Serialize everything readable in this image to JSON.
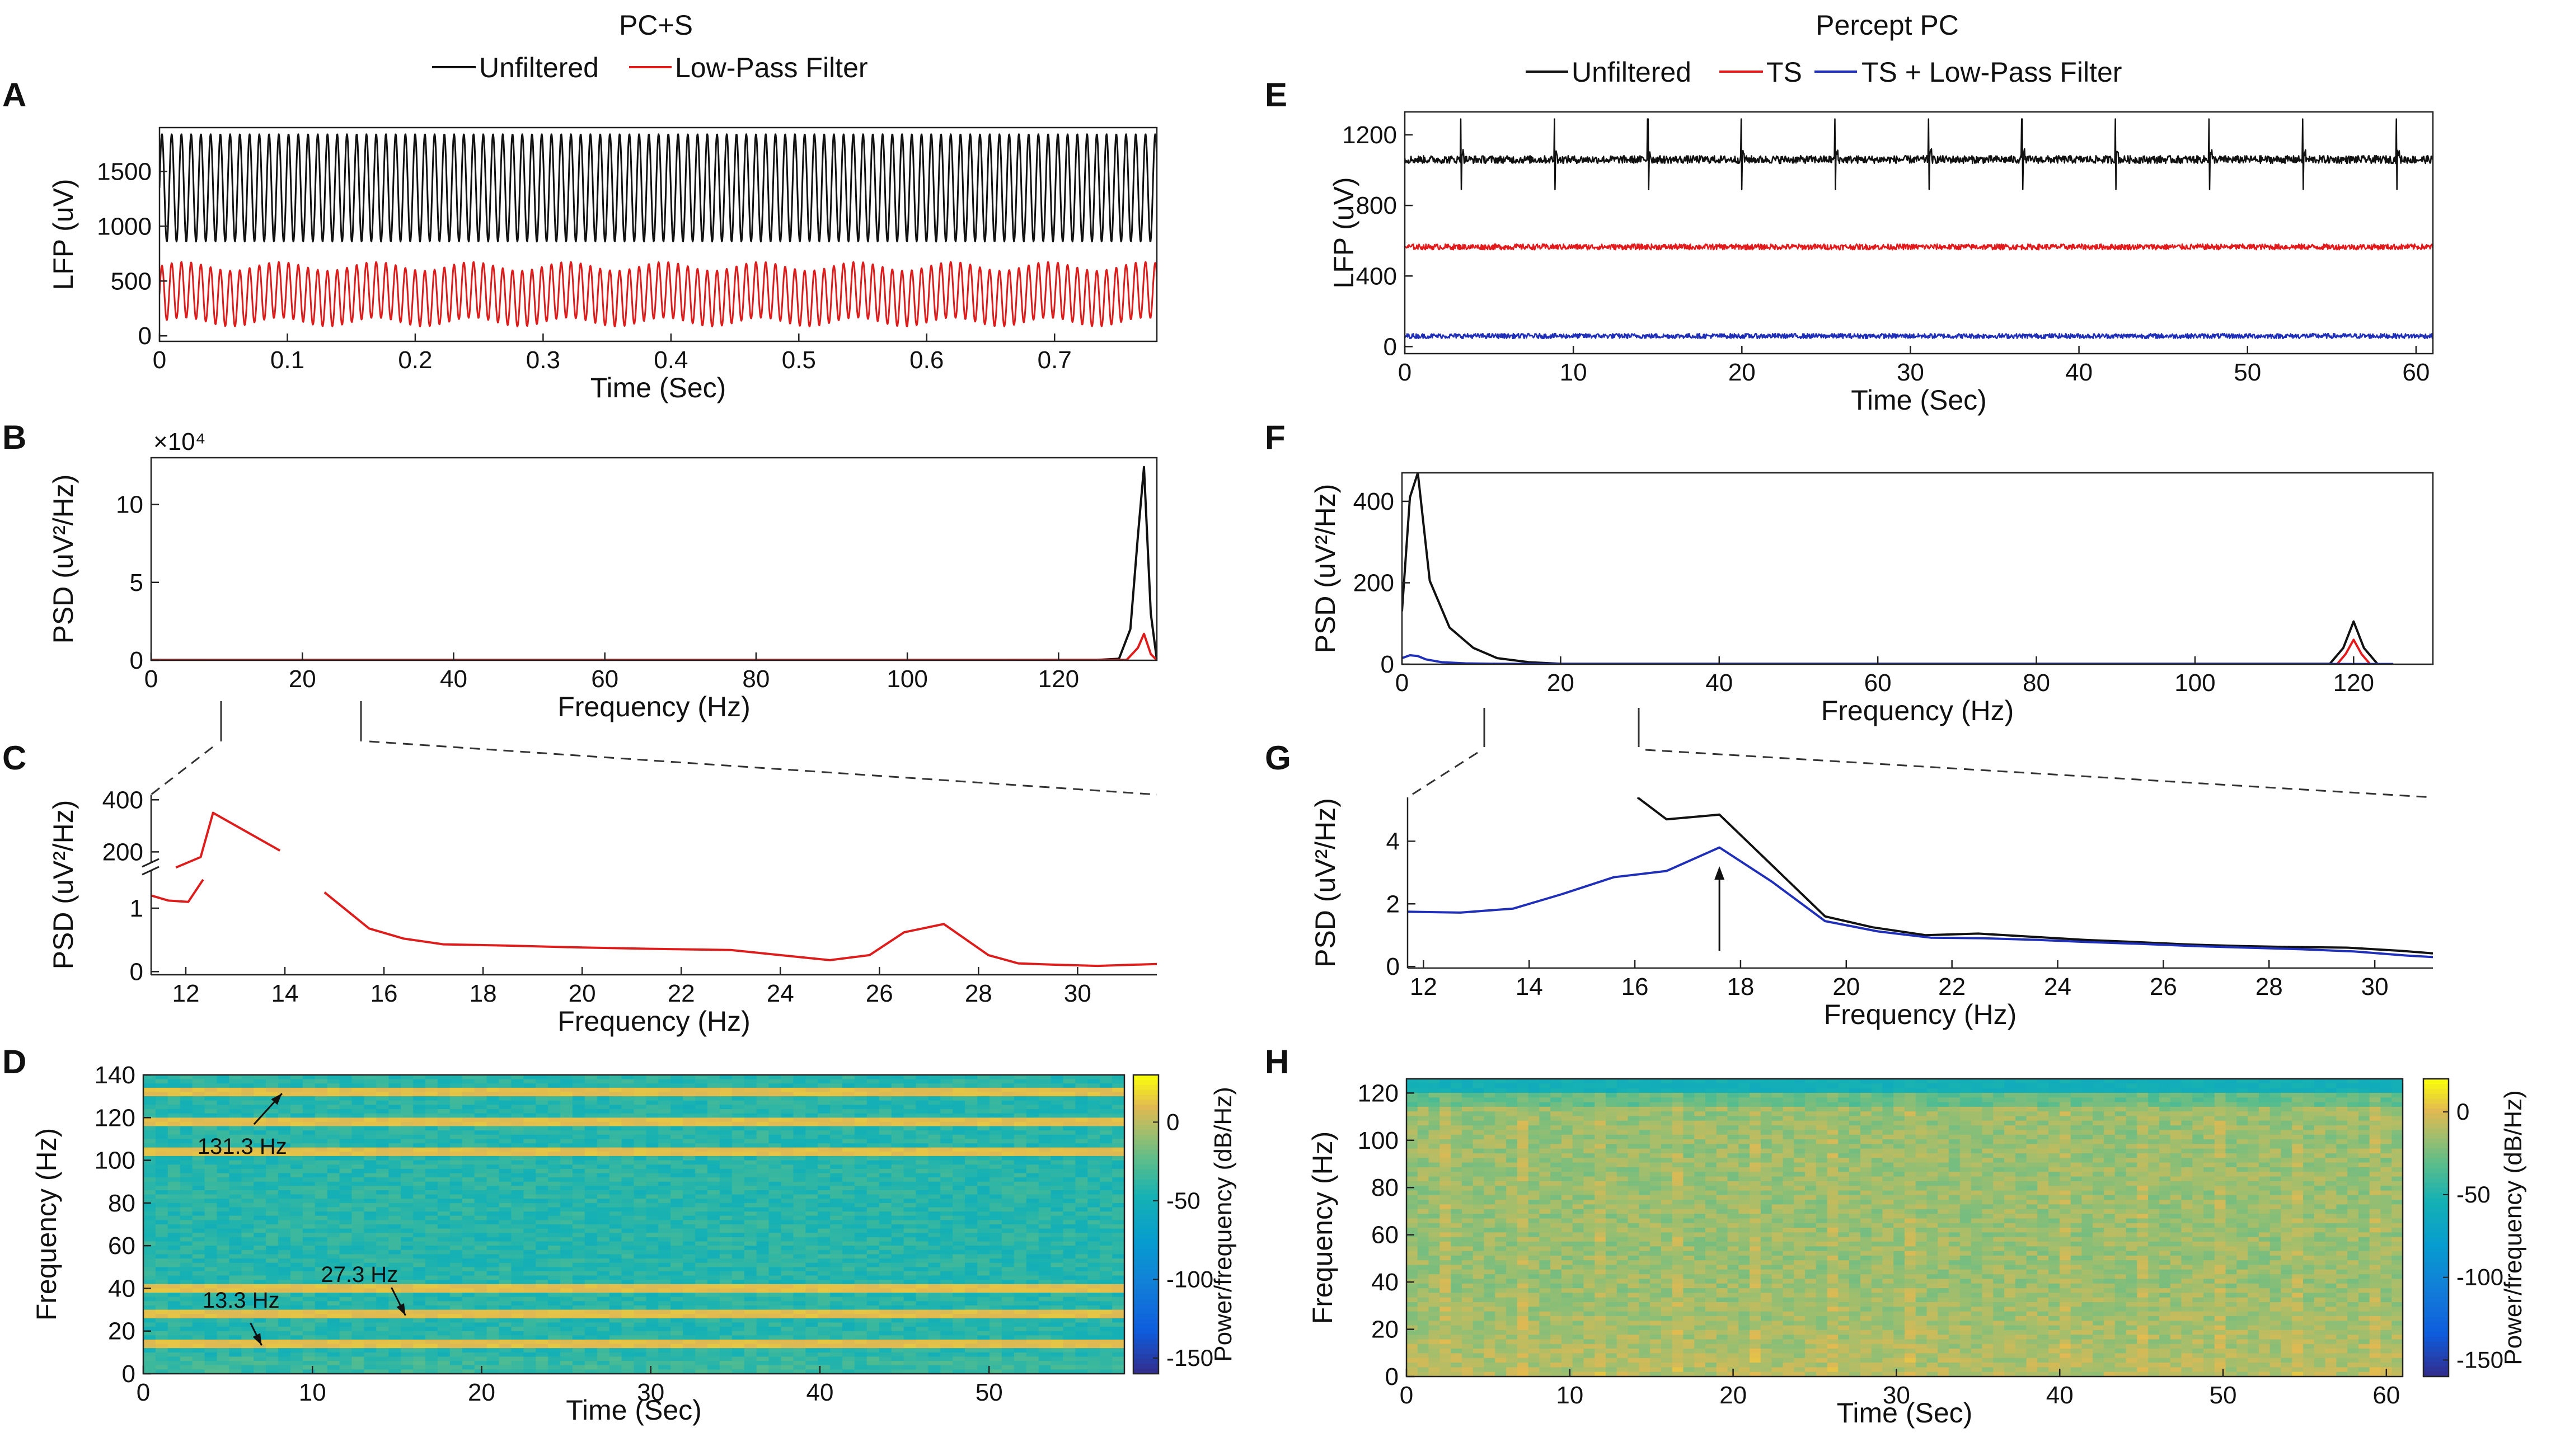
{
  "colors": {
    "unfiltered": "#111111",
    "low_pass": "#dd1c1c",
    "ts": "#e31a1c",
    "ts_lpf": "#1f2fb8",
    "axis": "#222222",
    "zoom_line": "#333333"
  },
  "chart_data": [
    {
      "id": "A",
      "type": "line",
      "panel_label": "A",
      "title": "PC+S",
      "legend": [
        "Unfiltered",
        "Low-Pass Filter"
      ],
      "xlabel": "Time (Sec)",
      "ylabel": "LFP (uV)",
      "xlim": [
        0,
        0.78
      ],
      "ylim": [
        -50,
        1900
      ],
      "xticks": [
        0,
        0.1,
        0.2,
        0.3,
        0.4,
        0.5,
        0.6,
        0.7
      ],
      "xtick_labels": [
        "0",
        "0.1",
        "0.2",
        "0.3",
        "0.4",
        "0.5",
        "0.6",
        "0.7"
      ],
      "yticks": [
        0,
        500,
        1000,
        1500
      ],
      "ytick_labels": [
        "0",
        "500",
        "1000",
        "1500"
      ],
      "series": [
        {
          "name": "Unfiltered",
          "color_key": "unfiltered",
          "kind": "sine",
          "center": 1350,
          "amplitude": 490,
          "freq_hz": 131.3
        },
        {
          "name": "Low-Pass Filter",
          "color_key": "low_pass",
          "kind": "sine",
          "center": 380,
          "amplitude": 255,
          "freq_hz": 131.3,
          "mod_amp": 40,
          "mod_freq_hz": 13.3
        }
      ]
    },
    {
      "id": "B",
      "type": "line",
      "panel_label": "B",
      "xlabel": "Frequency (Hz)",
      "ylabel": "PSD (uV²/Hz)",
      "y_multiplier": "×10⁴",
      "xlim": [
        0,
        133
      ],
      "ylim": [
        0,
        13
      ],
      "xticks": [
        0,
        20,
        40,
        60,
        80,
        100,
        120
      ],
      "xtick_labels": [
        "0",
        "20",
        "40",
        "60",
        "80",
        "100",
        "120"
      ],
      "yticks": [
        0,
        5,
        10
      ],
      "ytick_labels": [
        "0",
        "5",
        "10"
      ],
      "series": [
        {
          "name": "Unfiltered",
          "color_key": "unfiltered",
          "x": [
            0,
            125,
            128,
            129.5,
            130.5,
            131.3,
            132.2,
            133
          ],
          "y": [
            0.02,
            0.02,
            0.1,
            2.0,
            8.0,
            12.4,
            3.0,
            0.03
          ]
        },
        {
          "name": "Low-Pass Filter",
          "color_key": "low_pass",
          "x": [
            0,
            129,
            130.5,
            131.3,
            132.2,
            133
          ],
          "y": [
            0.01,
            0.02,
            0.8,
            1.7,
            0.4,
            0.01
          ]
        }
      ]
    },
    {
      "id": "C",
      "type": "line",
      "panel_label": "C",
      "xlabel": "Frequency (Hz)",
      "ylabel": "PSD (uV²/Hz)",
      "xlim": [
        11.3,
        31.6
      ],
      "xticks": [
        12,
        14,
        16,
        18,
        20,
        22,
        24,
        26,
        28,
        30
      ],
      "xtick_labels": [
        "12",
        "14",
        "16",
        "18",
        "20",
        "22",
        "24",
        "26",
        "28",
        "30"
      ],
      "broken_axis": {
        "upper_ylim": [
          130,
          420
        ],
        "upper_yticks": [
          200,
          400
        ],
        "lower_ylim": [
          -0.05,
          1.6
        ],
        "lower_yticks": [
          0,
          1
        ]
      },
      "ytick_labels": [
        "400",
        "200",
        "1",
        "0"
      ],
      "series": [
        {
          "name": "Low-Pass Filter (upper)",
          "color_key": "low_pass",
          "x": [
            11.8,
            12.3,
            12.55,
            13.9
          ],
          "y": [
            140,
            180,
            350,
            205
          ]
        },
        {
          "name": "Low-Pass Filter (lower)",
          "color_key": "low_pass",
          "x": [
            11.3,
            11.65,
            12.05,
            12.35
          ],
          "y": [
            1.2,
            1.12,
            1.1,
            1.45
          ]
        },
        {
          "name": "Low-Pass Filter",
          "color_key": "low_pass",
          "x": [
            14.8,
            15.7,
            16.4,
            17.2,
            18.5,
            20,
            21.3,
            23,
            24.5,
            25,
            25.8,
            26.5,
            27.3,
            28.2,
            28.8,
            29.5,
            30.4,
            31.6
          ],
          "y": [
            1.25,
            0.68,
            0.52,
            0.43,
            0.41,
            0.38,
            0.36,
            0.34,
            0.22,
            0.18,
            0.26,
            0.62,
            0.75,
            0.26,
            0.13,
            0.11,
            0.09,
            0.12
          ]
        }
      ]
    },
    {
      "id": "D",
      "type": "heatmap",
      "panel_label": "D",
      "xlabel": "Time (Sec)",
      "ylabel": "Frequency (Hz)",
      "xlim": [
        0,
        58
      ],
      "ylim": [
        0,
        140
      ],
      "xticks": [
        0,
        10,
        20,
        30,
        40,
        50
      ],
      "xtick_labels": [
        "0",
        "10",
        "20",
        "30",
        "40",
        "50"
      ],
      "yticks": [
        0,
        20,
        40,
        60,
        80,
        100,
        120,
        140
      ],
      "ytick_labels": [
        "0",
        "20",
        "40",
        "60",
        "80",
        "100",
        "120",
        "140"
      ],
      "colorbar": {
        "label": "Power/frequency (dB/Hz)",
        "range": [
          -160,
          30
        ],
        "ticks": [
          0,
          -50,
          -100,
          -150
        ],
        "tick_labels": [
          "0",
          "-50",
          "-100",
          "-150"
        ]
      },
      "bands_hz": [
        13.3,
        27.3,
        40,
        104,
        118,
        131.3
      ],
      "base_db": -40,
      "annotations": [
        {
          "text": "131.3 Hz",
          "freq": 131.3,
          "time": 8.2
        },
        {
          "text": "13.3 Hz",
          "freq": 13.3,
          "time": 7
        },
        {
          "text": "27.3 Hz",
          "freq": 27.3,
          "time": 15.5
        }
      ]
    },
    {
      "id": "E",
      "type": "line",
      "panel_label": "E",
      "title": "Percept PC",
      "legend": [
        "Unfiltered",
        "TS",
        "TS + Low-Pass Filter"
      ],
      "xlabel": "Time (Sec)",
      "ylabel": "LFP (uV)",
      "xlim": [
        0,
        61
      ],
      "ylim": [
        -40,
        1330
      ],
      "xticks": [
        0,
        10,
        20,
        30,
        40,
        50,
        60
      ],
      "xtick_labels": [
        "0",
        "10",
        "20",
        "30",
        "40",
        "50",
        "60"
      ],
      "yticks": [
        0,
        400,
        800,
        1200
      ],
      "ytick_labels": [
        "0",
        "400",
        "800",
        "1200"
      ],
      "series": [
        {
          "name": "Unfiltered",
          "color_key": "unfiltered",
          "kind": "noise_spikes",
          "center": 1060,
          "noise": 22,
          "spike_period_s": 5.55,
          "spike_start_s": 3.3,
          "spike_up": 230,
          "spike_down": 170
        },
        {
          "name": "TS",
          "color_key": "ts",
          "kind": "noise",
          "center": 565,
          "noise": 16
        },
        {
          "name": "TS + Low-Pass Filter",
          "color_key": "ts_lpf",
          "kind": "noise",
          "center": 60,
          "noise": 14
        }
      ]
    },
    {
      "id": "F",
      "type": "line",
      "panel_label": "F",
      "xlabel": "Frequency (Hz)",
      "ylabel": "PSD (uV²/Hz)",
      "xlim": [
        0,
        130
      ],
      "ylim": [
        0,
        470
      ],
      "xticks": [
        0,
        20,
        40,
        60,
        80,
        100,
        120
      ],
      "xtick_labels": [
        "0",
        "20",
        "40",
        "60",
        "80",
        "100",
        "120"
      ],
      "yticks": [
        0,
        200,
        400
      ],
      "ytick_labels": [
        "0",
        "200",
        "400"
      ],
      "series": [
        {
          "name": "Unfiltered",
          "color_key": "unfiltered",
          "x": [
            0,
            1,
            2,
            3.5,
            6,
            9,
            12,
            16,
            20,
            117,
            118.7,
            120,
            121.3,
            123
          ],
          "y": [
            130,
            410,
            470,
            205,
            90,
            40,
            15,
            5,
            1,
            1,
            40,
            105,
            40,
            1
          ]
        },
        {
          "name": "TS",
          "color_key": "ts",
          "x": [
            118,
            119,
            120,
            121,
            122
          ],
          "y": [
            2,
            25,
            60,
            25,
            2
          ]
        },
        {
          "name": "TS + Low-Pass Filter",
          "color_key": "ts_lpf",
          "x": [
            0,
            1,
            2,
            3,
            5,
            8,
            12,
            20,
            125
          ],
          "y": [
            15,
            22,
            20,
            12,
            5,
            2,
            1,
            0.5,
            0.5
          ]
        }
      ]
    },
    {
      "id": "G",
      "type": "line",
      "panel_label": "G",
      "xlabel": "Frequency (Hz)",
      "ylabel": "PSD (uV²/Hz)",
      "xlim": [
        11.7,
        31.1
      ],
      "ylim": [
        -0.05,
        5.4
      ],
      "xticks": [
        12,
        14,
        16,
        18,
        20,
        22,
        24,
        26,
        28,
        30
      ],
      "xtick_labels": [
        "12",
        "14",
        "16",
        "18",
        "20",
        "22",
        "24",
        "26",
        "28",
        "30"
      ],
      "yticks": [
        0,
        2,
        4
      ],
      "ytick_labels": [
        "0",
        "2",
        "4"
      ],
      "annotation": "arrow at 17.6 Hz",
      "arrow_x": 17.6,
      "series": [
        {
          "name": "Unfiltered",
          "color_key": "unfiltered",
          "x": [
            16.05,
            16.6,
            17.6,
            19.6,
            20.5,
            21.5,
            22.5,
            23.5,
            24.5,
            25.5,
            26.5,
            27.5,
            28.5,
            29.5,
            30.5,
            31.1
          ],
          "y": [
            5.4,
            4.7,
            4.85,
            1.6,
            1.25,
            1.0,
            1.05,
            0.95,
            0.85,
            0.78,
            0.7,
            0.65,
            0.62,
            0.6,
            0.5,
            0.42
          ]
        },
        {
          "name": "TS + Low-Pass Filter",
          "color_key": "ts_lpf",
          "x": [
            11.7,
            12.7,
            13.7,
            14.6,
            15.6,
            16.6,
            17.6,
            18.6,
            19.6,
            20.6,
            21.6,
            22.6,
            23.6,
            24.6,
            25.6,
            26.6,
            27.6,
            28.6,
            29.6,
            30.6,
            31.1
          ],
          "y": [
            1.75,
            1.72,
            1.85,
            2.3,
            2.85,
            3.05,
            3.8,
            2.7,
            1.45,
            1.12,
            0.92,
            0.9,
            0.85,
            0.78,
            0.72,
            0.65,
            0.6,
            0.55,
            0.48,
            0.35,
            0.3
          ]
        }
      ]
    },
    {
      "id": "H",
      "type": "heatmap",
      "panel_label": "H",
      "xlabel": "Time (Sec)",
      "ylabel": "Frequency (Hz)",
      "xlim": [
        0,
        61
      ],
      "ylim": [
        0,
        126
      ],
      "xticks": [
        0,
        10,
        20,
        30,
        40,
        50,
        60
      ],
      "xtick_labels": [
        "0",
        "10",
        "20",
        "30",
        "40",
        "50",
        "60"
      ],
      "yticks": [
        0,
        20,
        40,
        60,
        80,
        100,
        120
      ],
      "ytick_labels": [
        "0",
        "20",
        "40",
        "60",
        "80",
        "100",
        "120"
      ],
      "colorbar": {
        "label": "Power/frequency (dB/Hz)",
        "range": [
          -160,
          20
        ],
        "ticks": [
          0,
          -50,
          -100,
          -150
        ],
        "tick_labels": [
          "0",
          "-50",
          "-100",
          "-150"
        ]
      },
      "base_db": -15,
      "top_band_db": -55
    }
  ]
}
